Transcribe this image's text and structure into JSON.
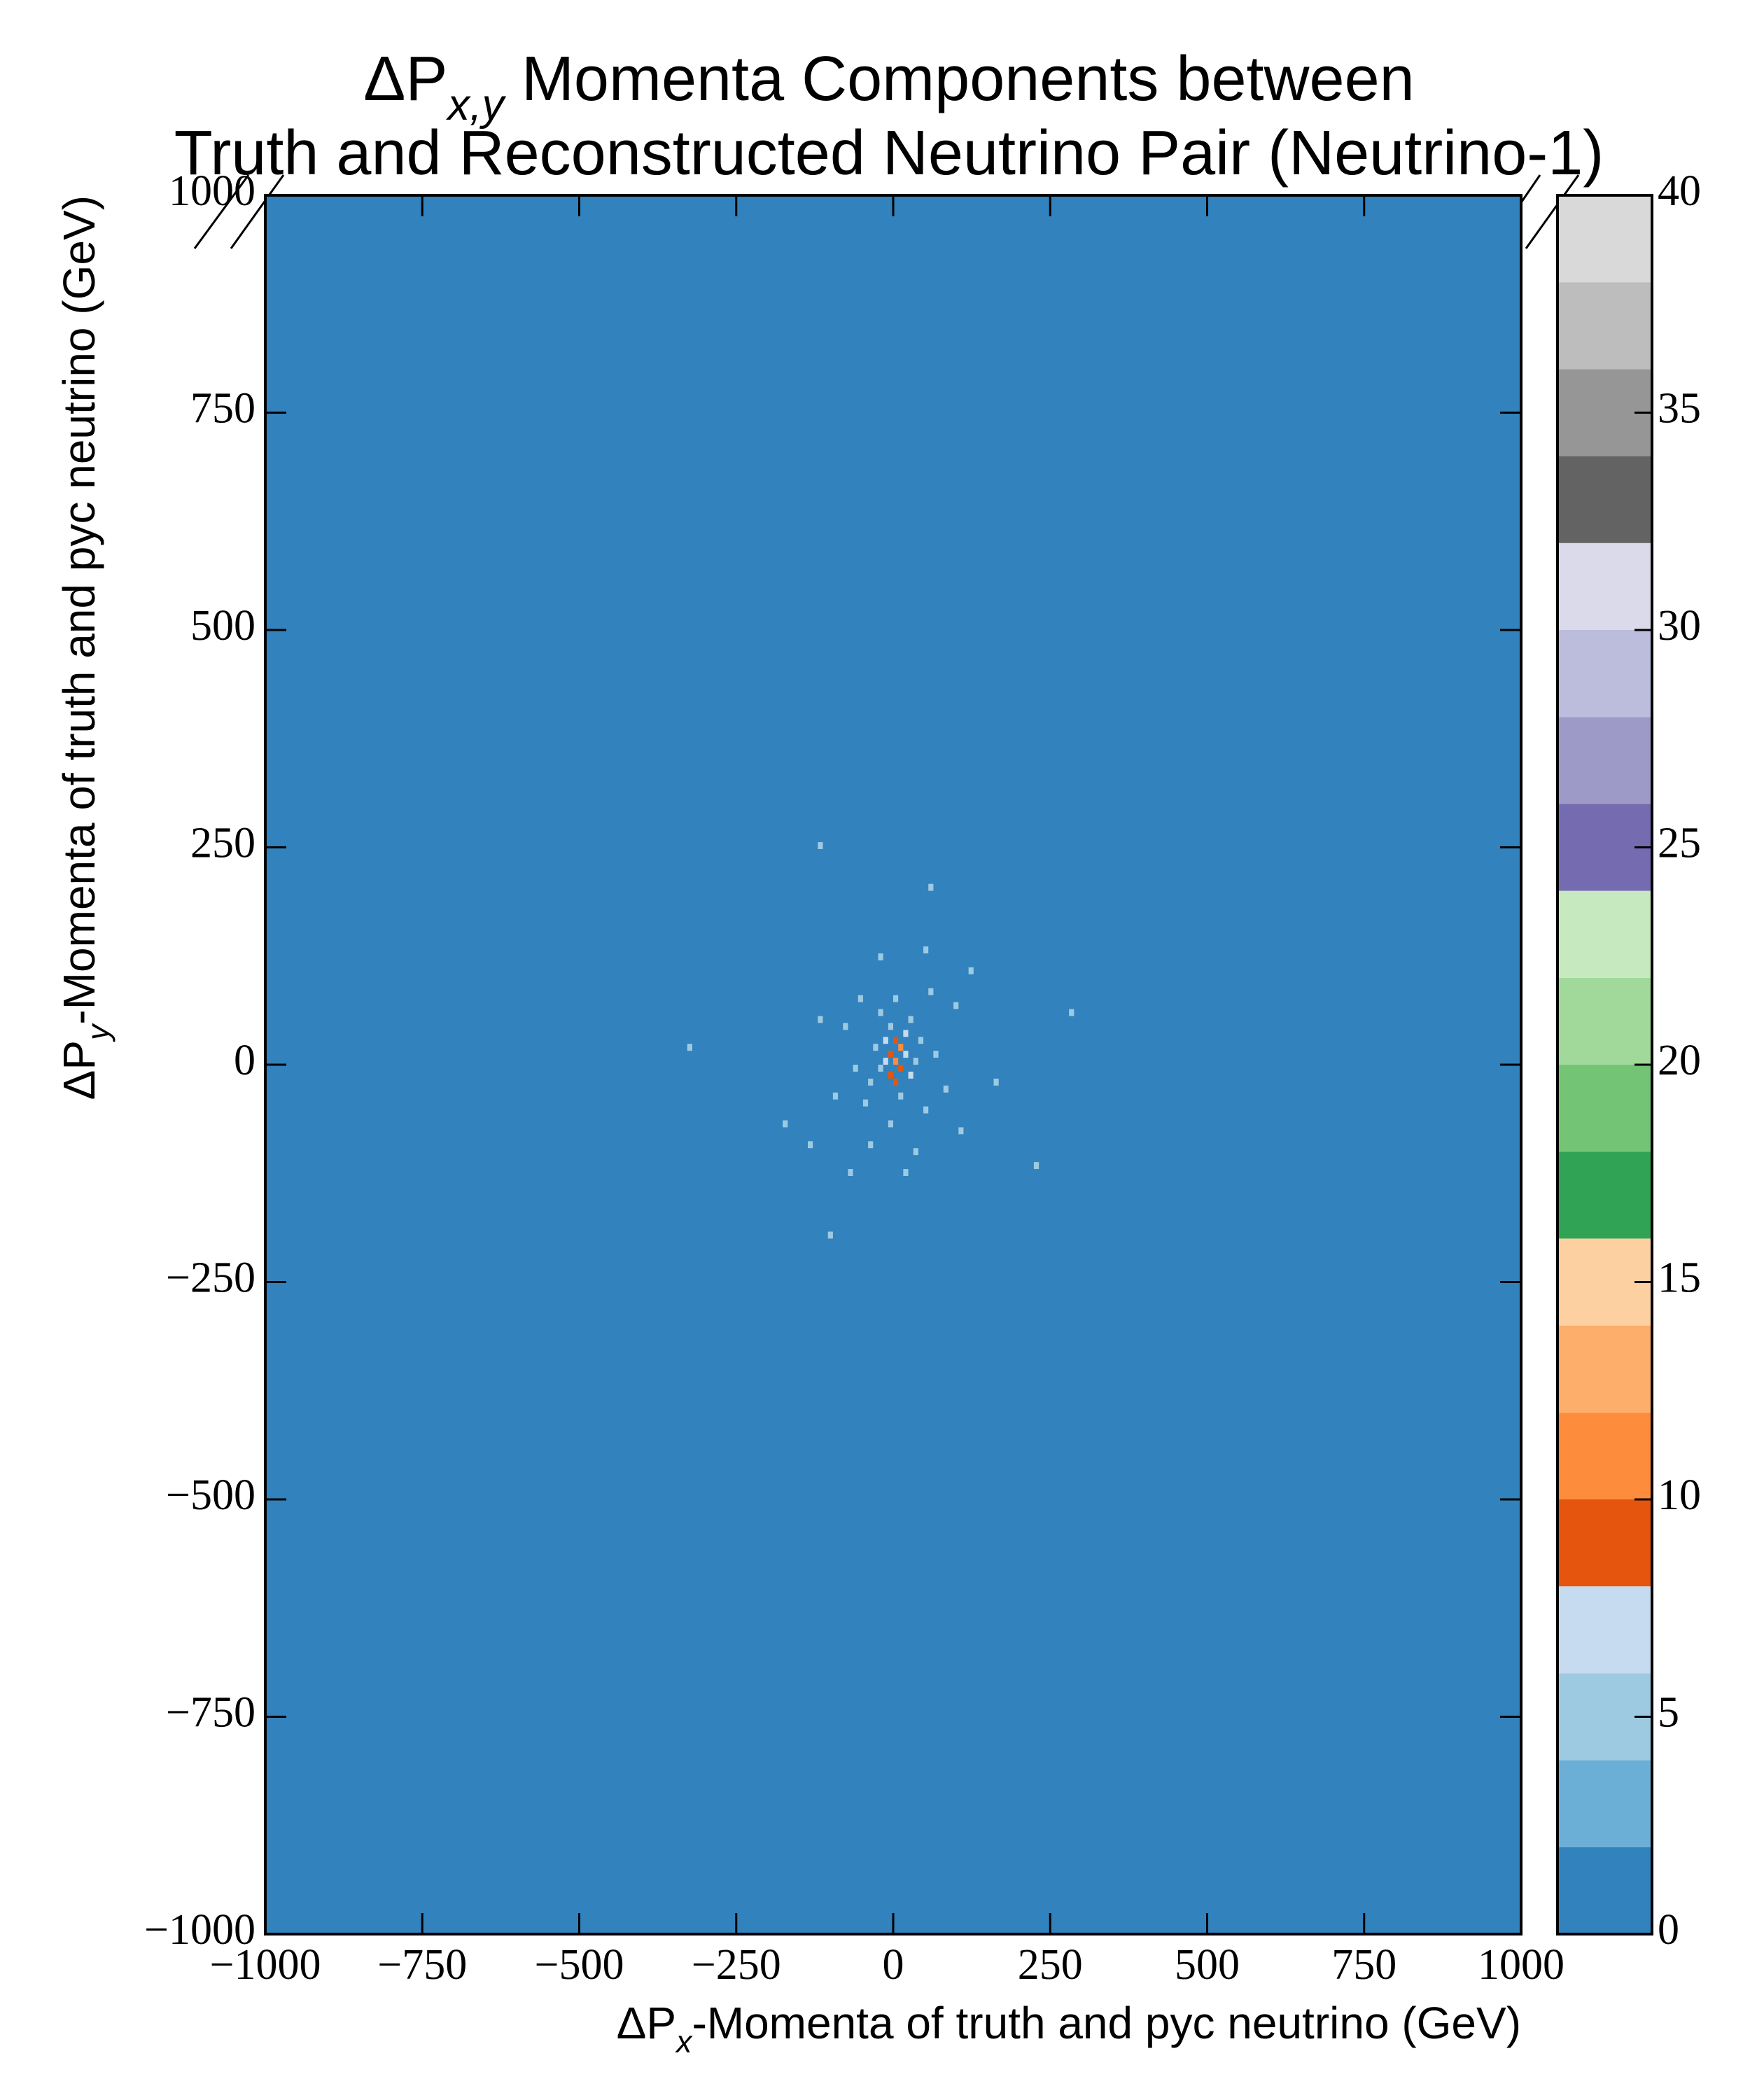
{
  "chart_data": {
    "type": "hist2d",
    "title": [
      [
        {
          "text": "ΔP"
        },
        {
          "text": "x,y",
          "sub": true
        },
        {
          "text": " Momenta Components between"
        }
      ],
      [
        {
          "text": "Truth and Reconstructed Neutrino Pair (Neutrino-1)"
        }
      ]
    ],
    "x_label": [
      {
        "text": "ΔP"
      },
      {
        "text": "x",
        "sub": true
      },
      {
        "text": "-Momenta of truth and pyc neutrino (GeV)"
      }
    ],
    "y_label": [
      {
        "text": "ΔP"
      },
      {
        "text": "y",
        "sub": true
      },
      {
        "text": "-Momenta of truth and pyc neutrino (GeV)"
      }
    ],
    "xlim": [
      -1000,
      1000
    ],
    "ylim": [
      -1000,
      1000
    ],
    "bins": 250,
    "xticks": [
      {
        "value": -1000,
        "label": "−1000"
      },
      {
        "value": -750,
        "label": "−750"
      },
      {
        "value": -500,
        "label": "−500"
      },
      {
        "value": -250,
        "label": "−250"
      },
      0,
      250,
      500,
      750,
      1000
    ],
    "yticks": [
      {
        "value": -1000,
        "label": "−1000"
      },
      {
        "value": -750,
        "label": "−750"
      },
      {
        "value": -500,
        "label": "−500"
      },
      {
        "value": -250,
        "label": "−250"
      },
      0,
      250,
      500,
      750,
      1000
    ],
    "cells": {
      "x": [
        0,
        8,
        -8,
        0,
        -8,
        8,
        0,
        -16,
        16,
        -16,
        24,
        -24,
        16,
        -8,
        8,
        32,
        -32,
        -40,
        40,
        24,
        -24,
        -48,
        48,
        0,
        -8,
        64,
        -64,
        56,
        -56,
        80,
        -80,
        -40,
        32,
        96,
        -96,
        -120,
        104,
        -72,
        16,
        48,
        -24,
        56,
        -176,
        -104,
        224,
        280,
        -328,
        -120,
        160,
        -136,
        120
      ],
      "y": [
        0,
        16,
        -16,
        24,
        8,
        -8,
        -24,
        0,
        8,
        24,
        -16,
        -8,
        32,
        40,
        -40,
        0,
        16,
        -24,
        24,
        48,
        56,
        -48,
        -56,
        72,
        -72,
        8,
        -8,
        80,
        72,
        -32,
        40,
        -96,
        -104,
        64,
        -40,
        48,
        -80,
        -128,
        -128,
        128,
        120,
        200,
        -72,
        -200,
        -120,
        56,
        16,
        248,
        -24,
        -96,
        104
      ],
      "counts": [
        11,
        10,
        9,
        9,
        8,
        9,
        8,
        7,
        7,
        6,
        6,
        5,
        6,
        5,
        5,
        5,
        5,
        5,
        5,
        5,
        5,
        5,
        5,
        5,
        5,
        5,
        5,
        5,
        5,
        5,
        5,
        5,
        5,
        5,
        5,
        5,
        5,
        5,
        5,
        5,
        5,
        5,
        5,
        5,
        5,
        5,
        5,
        5,
        5,
        5,
        5
      ]
    },
    "colorbar": {
      "lim": [
        0,
        40
      ],
      "levels": [
        0,
        2,
        4,
        6,
        8,
        10,
        12,
        14,
        16,
        18,
        20,
        22,
        24,
        26,
        28,
        30,
        32,
        34,
        36,
        38,
        40
      ],
      "colors": [
        "#3182bd",
        "#6baed6",
        "#9ecae1",
        "#c6dbef",
        "#e6550d",
        "#fd8d3c",
        "#fdae6b",
        "#fdd0a2",
        "#31a354",
        "#74c476",
        "#a1d99b",
        "#c7e9c0",
        "#756bb1",
        "#9e9ac8",
        "#bcbddc",
        "#dadaeb",
        "#636363",
        "#969696",
        "#bdbdbd",
        "#d9d9d9"
      ],
      "ticks": [
        0,
        5,
        10,
        15,
        20,
        25,
        30,
        35,
        40
      ]
    }
  }
}
